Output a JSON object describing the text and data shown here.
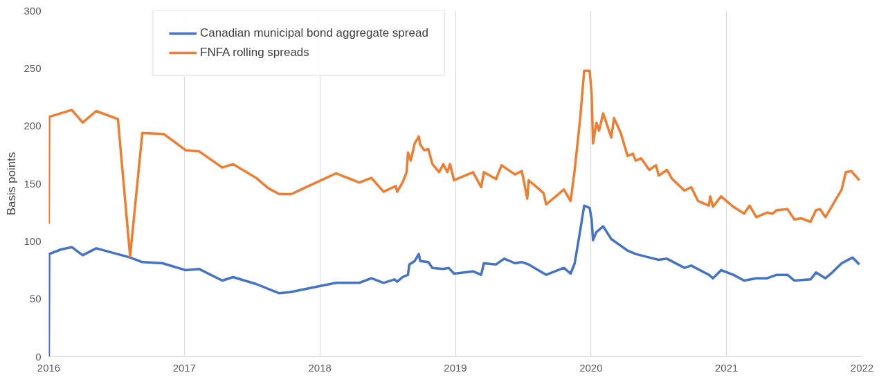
{
  "chart_data": {
    "type": "line",
    "ylabel": "Basis points",
    "xlim": [
      2016,
      2022
    ],
    "xticks": [
      2016,
      2017,
      2018,
      2019,
      2020,
      2021,
      2022
    ],
    "ylim": [
      0,
      300
    ],
    "yticks": [
      0,
      50,
      100,
      150,
      200,
      250,
      300
    ],
    "grid": "x",
    "legend": "top left",
    "line_style": "solid",
    "marker": "none",
    "series": [
      {
        "name": "Canadian municipal bond aggregate spread",
        "color": "#4472c4",
        "x": [
          2016.0,
          2016.003,
          2016.09,
          2016.17,
          2016.25,
          2016.35,
          2016.6,
          2016.69,
          2016.84,
          2017.01,
          2017.11,
          2017.28,
          2017.36,
          2017.53,
          2017.7,
          2017.78,
          2018.03,
          2018.12,
          2018.29,
          2018.38,
          2018.47,
          2018.55,
          2018.57,
          2018.61,
          2018.65,
          2018.66,
          2018.7,
          2018.73,
          2018.74,
          2018.8,
          2018.83,
          2018.91,
          2018.95,
          2018.99,
          2019.13,
          2019.19,
          2019.21,
          2019.3,
          2019.36,
          2019.44,
          2019.49,
          2019.54,
          2019.67,
          2019.8,
          2019.85,
          2019.88,
          2019.92,
          2019.95,
          2019.99,
          2020.005,
          2020.015,
          2020.04,
          2020.09,
          2020.15,
          2020.27,
          2020.33,
          2020.43,
          2020.5,
          2020.56,
          2020.69,
          2020.74,
          2020.87,
          2020.9,
          2020.96,
          2021.05,
          2021.13,
          2021.22,
          2021.3,
          2021.37,
          2021.45,
          2021.5,
          2021.62,
          2021.66,
          2021.73,
          2021.78,
          2021.85,
          2021.93,
          2021.98
        ],
        "values": [
          0,
          89,
          93,
          95,
          88,
          94,
          86,
          82,
          81,
          75,
          76,
          66,
          69,
          63,
          55,
          56,
          62,
          64,
          64,
          68,
          64,
          67,
          65,
          69,
          71,
          80,
          83,
          89,
          83,
          82,
          77,
          76,
          77,
          72,
          74,
          71,
          81,
          80,
          85,
          81,
          82,
          80,
          71,
          77,
          72,
          81,
          109,
          131,
          129,
          119,
          101,
          108,
          113,
          102,
          92,
          89,
          86,
          84,
          85,
          77,
          79,
          71,
          68,
          75,
          71,
          66,
          68,
          68,
          71,
          71,
          66,
          67,
          73,
          68,
          73,
          81,
          86,
          80
        ]
      },
      {
        "name": "FNFA rolling spreads",
        "color": "#ed7d31",
        "x": [
          2016.0,
          2016.003,
          2016.17,
          2016.25,
          2016.35,
          2016.51,
          2016.6,
          2016.69,
          2016.85,
          2017.01,
          2017.11,
          2017.28,
          2017.36,
          2017.53,
          2017.62,
          2017.7,
          2017.79,
          2017.88,
          2018.12,
          2018.29,
          2018.38,
          2018.47,
          2018.56,
          2018.57,
          2018.61,
          2018.64,
          2018.65,
          2018.67,
          2018.7,
          2018.73,
          2018.74,
          2018.77,
          2018.8,
          2018.83,
          2018.88,
          2018.91,
          2018.94,
          2018.96,
          2018.99,
          2019.13,
          2019.19,
          2019.21,
          2019.3,
          2019.34,
          2019.44,
          2019.49,
          2019.53,
          2019.54,
          2019.65,
          2019.67,
          2019.8,
          2019.85,
          2019.88,
          2019.92,
          2019.95,
          2019.99,
          2020.005,
          2020.015,
          2020.04,
          2020.06,
          2020.09,
          2020.15,
          2020.17,
          2020.22,
          2020.27,
          2020.31,
          2020.33,
          2020.37,
          2020.43,
          2020.48,
          2020.5,
          2020.56,
          2020.6,
          2020.69,
          2020.74,
          2020.79,
          2020.87,
          2020.88,
          2020.9,
          2020.96,
          2021.05,
          2021.13,
          2021.17,
          2021.22,
          2021.3,
          2021.34,
          2021.37,
          2021.45,
          2021.5,
          2021.55,
          2021.62,
          2021.66,
          2021.69,
          2021.73,
          2021.76,
          2021.85,
          2021.88,
          2021.92,
          2021.98
        ],
        "values": [
          115,
          208,
          214,
          203,
          213,
          206,
          87,
          194,
          193,
          179,
          178,
          164,
          167,
          155,
          146,
          141,
          141,
          146,
          159,
          151,
          155,
          143,
          148,
          143,
          151,
          160,
          177,
          170,
          185,
          191,
          184,
          179,
          180,
          167,
          160,
          167,
          160,
          167,
          153,
          160,
          147,
          160,
          154,
          166,
          158,
          161,
          137,
          153,
          142,
          132,
          145,
          135,
          162,
          206,
          248,
          248,
          228,
          185,
          203,
          196,
          211,
          190,
          207,
          194,
          174,
          176,
          170,
          172,
          162,
          166,
          157,
          162,
          154,
          144,
          147,
          135,
          131,
          139,
          130,
          139,
          130,
          124,
          131,
          121,
          125,
          124,
          127,
          128,
          119,
          120,
          117,
          127,
          128,
          121,
          127,
          145,
          160,
          161,
          153
        ]
      }
    ]
  }
}
